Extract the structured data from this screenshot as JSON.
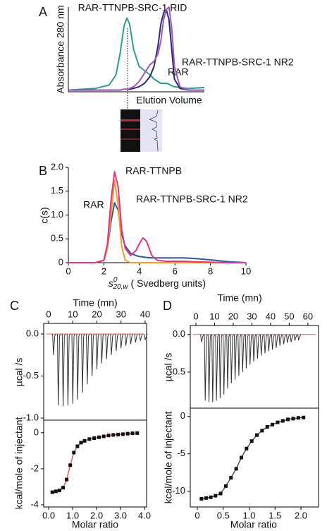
{
  "chart_data": [
    {
      "type": "line",
      "panel": "A",
      "xlabel": "Elution Volume",
      "ylabel": "Absorbance 280 nm",
      "xlim": [
        0,
        100
      ],
      "ylim": [
        0,
        1
      ],
      "x": [
        0,
        10,
        20,
        30,
        35,
        38,
        41,
        43,
        45,
        48,
        52,
        56,
        60,
        63,
        66,
        68,
        70,
        72,
        74,
        76,
        78,
        82,
        88,
        100
      ],
      "series": [
        {
          "name": "RAR-TTNPB-SRC-1 RID",
          "color": "#2a9d8f",
          "label_color": "#1a8a4a",
          "values": [
            0.02,
            0.03,
            0.04,
            0.08,
            0.2,
            0.45,
            0.78,
            0.87,
            0.8,
            0.5,
            0.3,
            0.25,
            0.2,
            0.15,
            0.12,
            0.1,
            0.1,
            0.1,
            0.09,
            0.07,
            0.06,
            0.05,
            0.04,
            0.05
          ]
        },
        {
          "name": "RAR",
          "color": "#2b2a6e",
          "label_color": "#2f3a8f",
          "values": [
            0.02,
            0.02,
            0.02,
            0.02,
            0.02,
            0.02,
            0.03,
            0.03,
            0.03,
            0.04,
            0.06,
            0.1,
            0.18,
            0.3,
            0.55,
            0.8,
            0.93,
            0.97,
            0.85,
            0.5,
            0.15,
            0.04,
            0.02,
            0.02
          ]
        },
        {
          "name": "RAR-TTNPB-SRC-1 NR2",
          "color": "#a05ab8",
          "label_color": "#d6338a",
          "values": [
            0.02,
            0.02,
            0.02,
            0.02,
            0.02,
            0.02,
            0.03,
            0.03,
            0.04,
            0.06,
            0.12,
            0.22,
            0.32,
            0.36,
            0.45,
            0.6,
            0.85,
            0.97,
            1.0,
            0.75,
            0.3,
            0.06,
            0.02,
            0.02
          ]
        }
      ]
    },
    {
      "type": "line",
      "panel": "B",
      "ylabel": "c(s)",
      "xlabel": {
        "symbol": "s",
        "sup": "0",
        "sub": "20,w",
        "text": " ( Svedberg units)"
      },
      "xlim": [
        0,
        10
      ],
      "ylim": [
        0,
        2
      ],
      "xticks": [
        0,
        2,
        4,
        6,
        8,
        10
      ],
      "yticks": [
        0,
        0.5,
        {
          "value": 1,
          "label": "1.0"
        },
        1.5,
        {
          "value": 2,
          "label": "2.0"
        }
      ],
      "x": [
        0,
        1,
        1.5,
        2,
        2.2,
        2.4,
        2.6,
        2.8,
        3,
        3.2,
        3.5,
        3.8,
        4,
        4.2,
        4.4,
        4.7,
        5,
        5.5,
        6,
        6.5,
        7,
        8,
        9,
        10
      ],
      "series": [
        {
          "name": "RAR-TTNPB",
          "color": "#2f5a9a",
          "label_color": "#2e3f8f",
          "values": [
            0,
            0,
            0,
            0.05,
            0.3,
            0.85,
            1.26,
            1.1,
            0.6,
            0.35,
            0.2,
            0.15,
            0.13,
            0.12,
            0.11,
            0.1,
            0.1,
            0.1,
            0.1,
            0.1,
            0.09,
            0.06,
            0.02,
            0
          ]
        },
        {
          "name": "RAR",
          "color": "#f39c2a",
          "values": [
            0,
            0,
            0,
            0.05,
            0.3,
            1.0,
            1.73,
            1.2,
            0.35,
            0.05,
            0,
            0,
            0,
            0,
            0,
            0,
            0,
            0,
            0,
            0,
            0,
            0,
            0,
            0
          ]
        },
        {
          "name": "RAR-TTNPB-SRC-1 NR2",
          "color": "#e0338a",
          "values": [
            0,
            0,
            0,
            0.05,
            0.4,
            1.3,
            1.91,
            1.6,
            0.7,
            0.3,
            0.15,
            0.25,
            0.4,
            0.52,
            0.45,
            0.15,
            0.05,
            0.03,
            0.03,
            0.03,
            0.02,
            0.01,
            0,
            0
          ]
        }
      ]
    },
    {
      "type": "spike",
      "panel": "C",
      "xlabel": "Time (mn)",
      "ylabel": "µcal /s",
      "color": "#333333",
      "baseline_color": "#e0605a",
      "xlim": [
        -2.04,
        40.6
      ],
      "ylim": [
        -1.025,
        0.126
      ],
      "xticks": [
        0,
        10,
        20,
        30,
        40
      ],
      "yticks": [
        {
          "value": 0,
          "label": "0.0"
        },
        -0.5,
        {
          "value": -1,
          "label": "-1.0"
        }
      ],
      "x": [
        2,
        4,
        6,
        8,
        10,
        12,
        14,
        16,
        18,
        20,
        22,
        24,
        26,
        28,
        30,
        32,
        34,
        36,
        38,
        40
      ],
      "values": [
        -0.25,
        -0.85,
        -0.86,
        -0.85,
        -0.83,
        -0.78,
        -0.7,
        -0.6,
        -0.5,
        -0.42,
        -0.35,
        -0.3,
        -0.25,
        -0.2,
        -0.17,
        -0.14,
        -0.12,
        -0.1,
        -0.08,
        -0.07
      ]
    },
    {
      "type": "scatter",
      "xlabel": "Molar ratio",
      "ylabel": "kcal/mole of injectant",
      "color": "#111111",
      "fit_color": "#e0605a",
      "xlim": [
        -0.21,
        4.09
      ],
      "ylim": [
        -4.12,
        0.7
      ],
      "xticks": [
        {
          "value": 0,
          "label": "0.0"
        },
        {
          "value": 1,
          "label": "1.0"
        },
        {
          "value": 2,
          "label": "2.0"
        },
        {
          "value": 3,
          "label": "3.0"
        },
        {
          "value": 4,
          "label": "4.0"
        }
      ],
      "yticks": [
        0,
        -2,
        -4
      ],
      "x": [
        0.15,
        0.3,
        0.45,
        0.6,
        0.75,
        0.9,
        1.05,
        1.2,
        1.35,
        1.5,
        1.7,
        1.9,
        2.1,
        2.3,
        2.5,
        2.7,
        2.9,
        3.1,
        3.3,
        3.5,
        3.7
      ],
      "values": [
        -3.3,
        -3.25,
        -3.2,
        -3.05,
        -2.6,
        -1.8,
        -1.1,
        -0.75,
        -0.55,
        -0.45,
        -0.35,
        -0.3,
        -0.25,
        -0.2,
        -0.15,
        -0.12,
        -0.1,
        -0.08,
        -0.05,
        -0.03,
        -0.02
      ]
    },
    {
      "type": "spike",
      "panel": "D",
      "xlabel": "Time (mn)",
      "ylabel": "µcal /s",
      "color": "#333333",
      "baseline_color": "#e0605a",
      "xlim": [
        -3,
        65.7
      ],
      "ylim": [
        -0.98,
        0.12
      ],
      "xticks": [
        0,
        10,
        20,
        30,
        40,
        50,
        60
      ],
      "yticks": [
        {
          "value": 0,
          "label": "0.0"
        },
        -0.5
      ],
      "x": [
        3,
        5,
        7,
        9,
        11,
        13,
        15,
        17,
        19,
        21,
        23,
        25,
        27,
        29,
        31,
        33,
        35,
        37,
        39,
        41,
        43,
        45,
        47,
        49,
        51,
        53,
        55
      ],
      "values": [
        -0.1,
        -0.88,
        -0.9,
        -0.9,
        -0.88,
        -0.85,
        -0.8,
        -0.72,
        -0.65,
        -0.6,
        -0.55,
        -0.5,
        -0.45,
        -0.4,
        -0.36,
        -0.32,
        -0.28,
        -0.25,
        -0.22,
        -0.2,
        -0.18,
        -0.15,
        -0.13,
        -0.11,
        -0.1,
        -0.08,
        -0.07
      ]
    },
    {
      "type": "scatter",
      "xlabel": "Molar ratio",
      "ylabel": "kcal/mole of injectant",
      "color": "#111111",
      "fit_color": "#555555",
      "xlim": [
        -0.136,
        2.34
      ],
      "ylim": [
        -12.1,
        1.1
      ],
      "xticks": [
        0,
        0.5,
        {
          "value": 1,
          "label": "1.0"
        },
        {
          "value": 1.5,
          "label": "1.5"
        },
        {
          "value": 2,
          "label": "2.0"
        }
      ],
      "yticks": [
        0,
        -5,
        -10
      ],
      "x": [
        0.08,
        0.17,
        0.26,
        0.35,
        0.45,
        0.55,
        0.65,
        0.75,
        0.85,
        0.95,
        1.05,
        1.15,
        1.25,
        1.35,
        1.45,
        1.55,
        1.65,
        1.75,
        1.85,
        1.95,
        2.05
      ],
      "values": [
        -11,
        -10.9,
        -10.8,
        -10.6,
        -10.3,
        -9.3,
        -8.2,
        -7,
        -5.5,
        -4.3,
        -3.3,
        -2.5,
        -1.9,
        -1.4,
        -1.1,
        -0.8,
        -0.6,
        -0.4,
        -0.3,
        -0.2,
        -0.15
      ]
    }
  ]
}
